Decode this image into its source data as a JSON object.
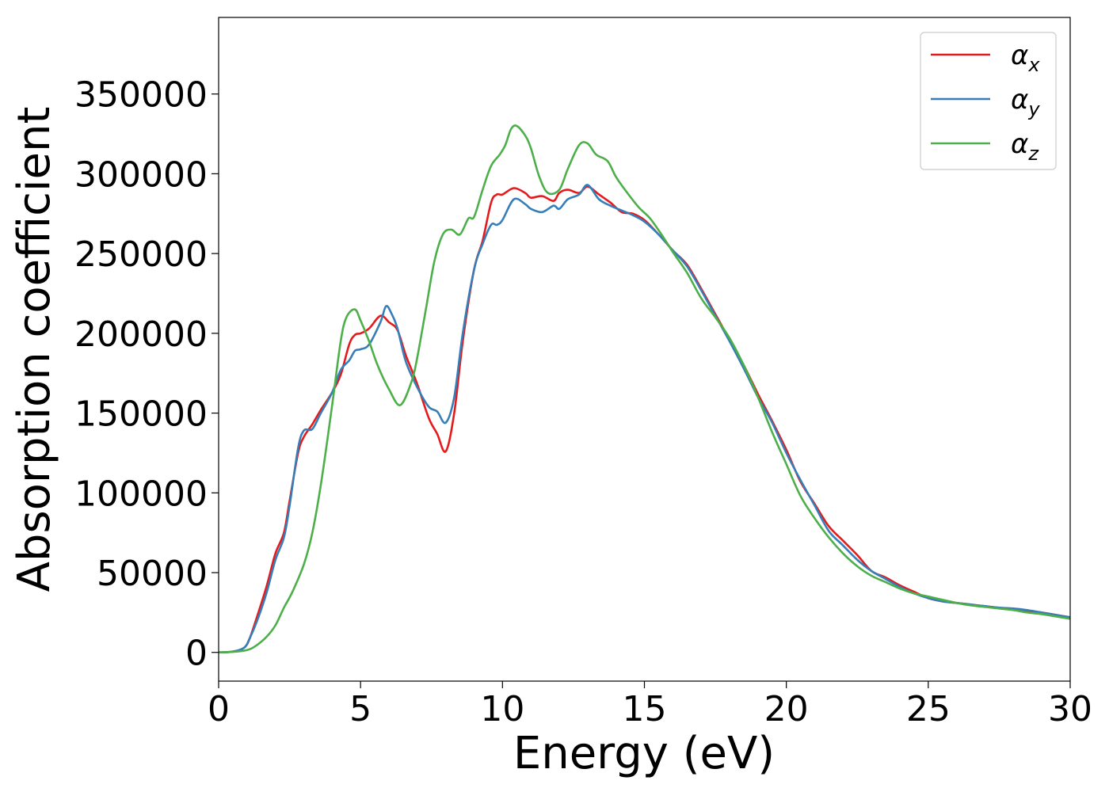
{
  "chart_data": {
    "type": "line",
    "xlabel": "Energy (eV)",
    "ylabel": "Absorption coefficient",
    "xlim": [
      0,
      30
    ],
    "ylim": [
      -18000,
      398000
    ],
    "xticks": [
      0,
      5,
      10,
      15,
      20,
      25,
      30
    ],
    "yticks": [
      0,
      50000,
      100000,
      150000,
      200000,
      250000,
      300000,
      350000
    ],
    "grid": false,
    "legend_position": "top-right",
    "series": [
      {
        "name": "αx",
        "color": "#e41a1c",
        "x": [
          0,
          0.5,
          0.9,
          1.1,
          1.4,
          1.7,
          2.0,
          2.3,
          2.5,
          2.8,
          3.0,
          3.3,
          3.6,
          4.0,
          4.3,
          4.6,
          4.8,
          5.0,
          5.3,
          5.7,
          6.0,
          6.3,
          6.6,
          7.0,
          7.4,
          7.7,
          8.0,
          8.3,
          8.6,
          9.0,
          9.3,
          9.6,
          9.8,
          10.0,
          10.4,
          10.8,
          11.0,
          11.4,
          11.8,
          12.0,
          12.3,
          12.7,
          13.0,
          13.4,
          13.8,
          14.2,
          14.6,
          15.0,
          15.5,
          16.0,
          16.5,
          17.0,
          17.5,
          18.0,
          18.5,
          19.0,
          19.5,
          20.0,
          20.5,
          21.0,
          21.5,
          22.0,
          22.5,
          23.0,
          23.5,
          24.0,
          24.5,
          25.0,
          25.5,
          26.0,
          26.5,
          27.0,
          27.5,
          28.0,
          28.5,
          29.0,
          29.5,
          30.0
        ],
        "y": [
          0,
          500,
          3000,
          9000,
          25000,
          42000,
          62000,
          75000,
          95000,
          125000,
          135000,
          143000,
          152000,
          163000,
          174000,
          193000,
          199000,
          200000,
          203000,
          211000,
          207000,
          202000,
          186000,
          168000,
          147000,
          137000,
          126000,
          150000,
          195000,
          240000,
          258000,
          282000,
          287000,
          287000,
          291000,
          288000,
          285000,
          286000,
          283000,
          288000,
          290000,
          288000,
          292000,
          287000,
          282000,
          276000,
          275000,
          271000,
          262000,
          252000,
          243000,
          228000,
          212000,
          196000,
          180000,
          162000,
          145000,
          127000,
          107000,
          93000,
          79000,
          70000,
          61000,
          51000,
          47000,
          42000,
          38000,
          34000,
          32000,
          31000,
          30000,
          29000,
          28000,
          27000,
          26000,
          25000,
          23500,
          22000
        ]
      },
      {
        "name": "αy",
        "color": "#377eb8",
        "x": [
          0,
          0.5,
          0.9,
          1.1,
          1.4,
          1.7,
          2.0,
          2.3,
          2.5,
          2.8,
          3.0,
          3.3,
          3.6,
          4.0,
          4.3,
          4.6,
          4.8,
          5.0,
          5.3,
          5.7,
          5.9,
          6.1,
          6.3,
          6.6,
          7.0,
          7.4,
          7.7,
          8.0,
          8.3,
          8.6,
          9.0,
          9.3,
          9.6,
          9.8,
          10.0,
          10.4,
          10.8,
          11.0,
          11.4,
          11.8,
          12.0,
          12.3,
          12.7,
          13.0,
          13.4,
          13.8,
          14.2,
          14.6,
          15.0,
          15.5,
          16.0,
          16.5,
          17.0,
          17.5,
          18.0,
          18.5,
          19.0,
          19.5,
          20.0,
          20.5,
          21.0,
          21.5,
          22.0,
          22.5,
          23.0,
          23.5,
          24.0,
          24.5,
          25.0,
          25.5,
          26.0,
          26.5,
          27.0,
          27.5,
          28.0,
          28.5,
          29.0,
          29.5,
          30.0
        ],
        "y": [
          0,
          500,
          3000,
          9000,
          22000,
          38000,
          58000,
          72000,
          92000,
          128000,
          139000,
          140000,
          150000,
          163000,
          177000,
          183000,
          189000,
          190000,
          193000,
          207000,
          217000,
          212000,
          203000,
          182000,
          166000,
          154000,
          151000,
          144000,
          160000,
          200000,
          240000,
          256000,
          268000,
          268000,
          271000,
          284000,
          281000,
          278000,
          276000,
          280000,
          278000,
          284000,
          287000,
          293000,
          284000,
          280000,
          277000,
          274000,
          270000,
          262000,
          252000,
          242000,
          227000,
          211000,
          195000,
          178000,
          160000,
          144000,
          125000,
          108000,
          92000,
          76000,
          67000,
          58000,
          51000,
          46000,
          41000,
          37000,
          34000,
          32000,
          31000,
          30000,
          29000,
          28000,
          27500,
          26500,
          25000,
          23500,
          22000
        ]
      },
      {
        "name": "αz",
        "color": "#4daf4a",
        "x": [
          0,
          0.5,
          1.0,
          1.3,
          1.7,
          2.0,
          2.3,
          2.6,
          3.0,
          3.3,
          3.6,
          4.0,
          4.3,
          4.5,
          4.8,
          5.0,
          5.3,
          5.6,
          6.0,
          6.4,
          6.8,
          7.0,
          7.3,
          7.6,
          7.9,
          8.2,
          8.5,
          8.8,
          9.0,
          9.3,
          9.6,
          9.9,
          10.1,
          10.3,
          10.5,
          10.8,
          11.0,
          11.3,
          11.6,
          12.0,
          12.3,
          12.7,
          13.0,
          13.3,
          13.7,
          14.0,
          14.4,
          14.8,
          15.2,
          15.6,
          16.0,
          16.5,
          17.0,
          17.5,
          18.0,
          18.5,
          19.0,
          19.5,
          20.0,
          20.5,
          21.0,
          21.5,
          22.0,
          22.5,
          23.0,
          23.5,
          24.0,
          24.5,
          25.0,
          25.5,
          26.0,
          26.5,
          27.0,
          27.5,
          28.0,
          28.5,
          29.0,
          29.5,
          30.0
        ],
        "y": [
          0,
          300,
          1500,
          4000,
          10000,
          17000,
          28000,
          38000,
          55000,
          75000,
          105000,
          155000,
          195000,
          210000,
          215000,
          208000,
          195000,
          180000,
          165000,
          155000,
          170000,
          185000,
          215000,
          245000,
          262000,
          265000,
          262000,
          272000,
          273000,
          290000,
          305000,
          312000,
          318000,
          328000,
          330000,
          324000,
          316000,
          298000,
          288000,
          290000,
          303000,
          318000,
          319000,
          312000,
          308000,
          298000,
          288000,
          279000,
          272000,
          262000,
          251000,
          238000,
          222000,
          210000,
          197000,
          180000,
          160000,
          138000,
          118000,
          98000,
          84000,
          72000,
          62000,
          54000,
          48000,
          44000,
          40000,
          37000,
          35000,
          33000,
          31000,
          29500,
          28500,
          27500,
          26500,
          25000,
          24000,
          22500,
          21000
        ]
      }
    ]
  }
}
